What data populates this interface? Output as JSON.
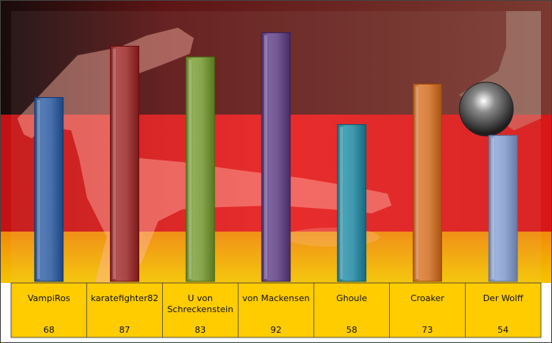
{
  "chart_data": {
    "type": "bar",
    "title": "",
    "xlabel": "",
    "ylabel": "",
    "ylim": [
      0,
      100
    ],
    "grid": false,
    "legend": "none",
    "categories": [
      "VampiRos",
      "karatefighter82",
      "U von Schreckenstein",
      "von Mackensen",
      "Ghoule",
      "Croaker",
      "Der Wolff"
    ],
    "category_lines": [
      [
        "VampiRos"
      ],
      [
        "karatefighter82"
      ],
      [
        "U von",
        "Schreckenstein"
      ],
      [
        "von Mackensen"
      ],
      [
        "Ghoule"
      ],
      [
        "Croaker"
      ],
      [
        "Der Wolff"
      ]
    ],
    "values": [
      68,
      87,
      83,
      92,
      58,
      73,
      54
    ],
    "value_labels": [
      "68",
      "87",
      "83",
      "92",
      "58",
      "73",
      "54"
    ],
    "bar_colors": [
      "#4a72ad",
      "#a84646",
      "#86a54c",
      "#735894",
      "#3f98ad",
      "#d78240",
      "#93a9d4"
    ]
  },
  "colors": {
    "flag_black": "#1a0d0d",
    "flag_red": "#e01c1c",
    "flag_gold": "#f5c400",
    "table_fill": "#ffcc00"
  },
  "background_icon": "footballer-silhouette"
}
